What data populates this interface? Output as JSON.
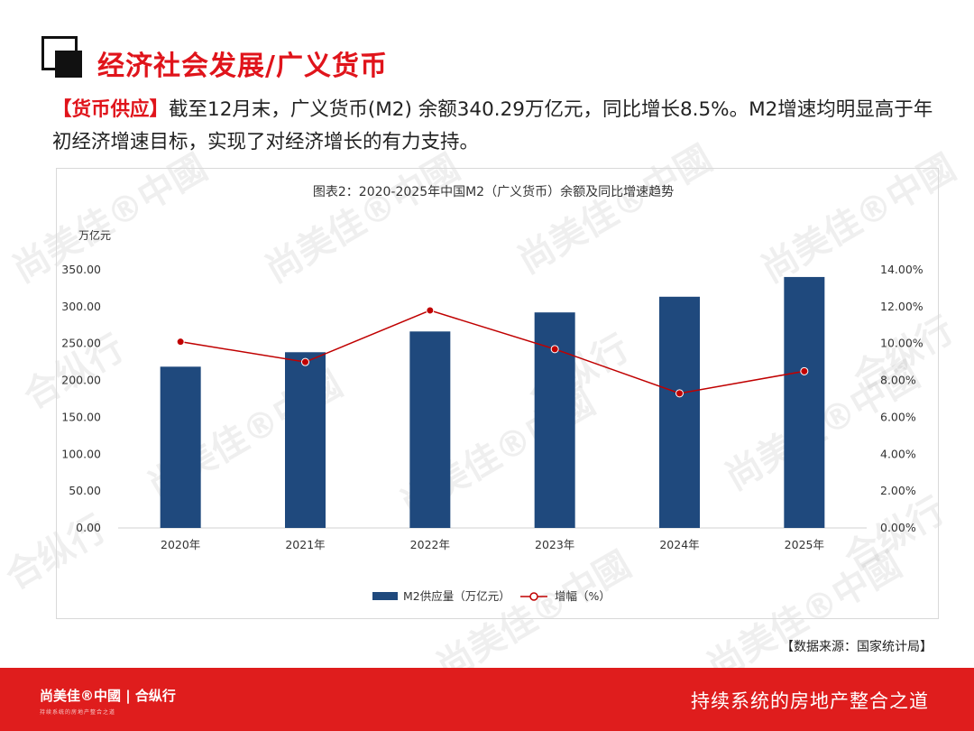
{
  "page": {
    "title": "经济社会发展/广义货币",
    "intro_tag": "【货币供应】",
    "intro_text": "截至12月末，广义货币(M2) 余额340.29万亿元，同比增长8.5%。M2增速均明显高于年初经济增速目标，实现了对经济增长的有力支持。",
    "source": "【数据来源：国家统计局】",
    "accent_color": "#e0141b"
  },
  "watermark": {
    "brand": "尚美佳®中國",
    "brand_secondary": "合纵行"
  },
  "footer": {
    "logo": "尚美佳®中國 | 合纵行",
    "logo_sub": "持续系统的房地产整合之道",
    "slogan": "持续系统的房地产整合之道",
    "color": "#df1d1d"
  },
  "chart_data": {
    "type": "bar",
    "title": "图表2：2020-2025年中国M2（广义货币）余额及同比增速趋势",
    "y_unit_label": "万亿元",
    "categories": [
      "2020年",
      "2021年",
      "2022年",
      "2023年",
      "2024年",
      "2025年"
    ],
    "y_ticks": [
      "0.00",
      "50.00",
      "100.00",
      "150.00",
      "200.00",
      "250.00",
      "300.00",
      "350.00"
    ],
    "y2_ticks": [
      "0.00%",
      "2.00%",
      "4.00%",
      "6.00%",
      "8.00%",
      "10.00%",
      "12.00%",
      "14.00%"
    ],
    "ylim": [
      0,
      350
    ],
    "y2lim": [
      0,
      14
    ],
    "legend_position": "bottom",
    "series": [
      {
        "name": "M2供应量（万亿元）",
        "type": "bar",
        "axis": "left",
        "color": "#1f497d",
        "values": [
          218.68,
          238.29,
          266.43,
          292.27,
          313.53,
          340.29
        ]
      },
      {
        "name": "增幅（%）",
        "type": "line",
        "axis": "right",
        "color": "#c00000",
        "values": [
          10.1,
          9.0,
          11.8,
          9.7,
          7.3,
          8.5
        ]
      }
    ]
  }
}
